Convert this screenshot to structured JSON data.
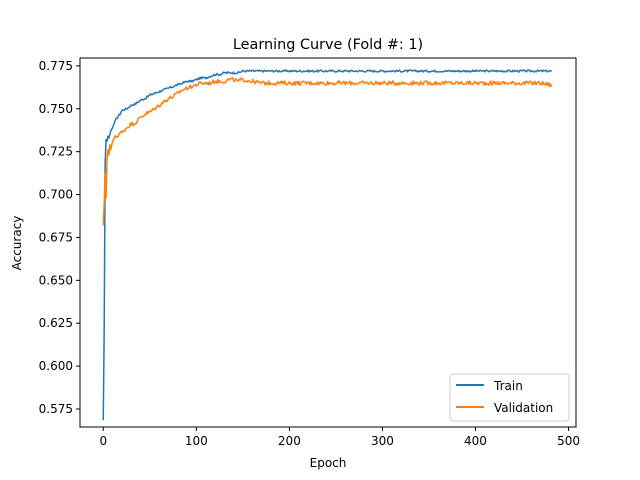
{
  "chart_data": {
    "type": "line",
    "title": "Learning Curve (Fold #: 1)",
    "xlabel": "Epoch",
    "ylabel": "Accuracy",
    "xlim": [
      -25,
      508
    ],
    "ylim": [
      0.5645,
      0.7796
    ],
    "x_ticks": [
      0,
      100,
      200,
      300,
      400,
      500
    ],
    "x_tick_labels": [
      "0",
      "100",
      "200",
      "300",
      "400",
      "500"
    ],
    "y_ticks": [
      0.575,
      0.6,
      0.625,
      0.65,
      0.675,
      0.7,
      0.725,
      0.75,
      0.775
    ],
    "y_tick_labels": [
      "0.575",
      "0.600",
      "0.625",
      "0.650",
      "0.675",
      "0.700",
      "0.725",
      "0.750",
      "0.775"
    ],
    "grid": false,
    "legend_position": "lower right",
    "series": [
      {
        "name": "Train",
        "color": "#1f77b4",
        "x": [
          0,
          1,
          2,
          3,
          4,
          5,
          6,
          8,
          10,
          12,
          15,
          18,
          20,
          25,
          30,
          35,
          40,
          45,
          50,
          55,
          60,
          65,
          70,
          75,
          80,
          85,
          90,
          95,
          100,
          105,
          110,
          115,
          120,
          125,
          130,
          135,
          140,
          145,
          150,
          160,
          170,
          180,
          190,
          200,
          210,
          220,
          230,
          240,
          250,
          260,
          270,
          280,
          290,
          300,
          310,
          320,
          330,
          340,
          350,
          360,
          370,
          380,
          390,
          400,
          410,
          420,
          430,
          440,
          450,
          460,
          470,
          480,
          482
        ],
        "y": [
          0.5685,
          0.622,
          0.718,
          0.732,
          0.731,
          0.734,
          0.733,
          0.737,
          0.739,
          0.742,
          0.745,
          0.747,
          0.749,
          0.75,
          0.752,
          0.753,
          0.755,
          0.756,
          0.758,
          0.759,
          0.76,
          0.761,
          0.762,
          0.763,
          0.764,
          0.765,
          0.766,
          0.766,
          0.767,
          0.768,
          0.768,
          0.769,
          0.77,
          0.77,
          0.771,
          0.771,
          0.771,
          0.771,
          0.772,
          0.772,
          0.772,
          0.772,
          0.772,
          0.772,
          0.772,
          0.772,
          0.772,
          0.772,
          0.772,
          0.772,
          0.772,
          0.772,
          0.772,
          0.772,
          0.772,
          0.772,
          0.772,
          0.772,
          0.772,
          0.772,
          0.772,
          0.772,
          0.772,
          0.772,
          0.772,
          0.772,
          0.772,
          0.772,
          0.772,
          0.772,
          0.772,
          0.772,
          0.772
        ]
      },
      {
        "name": "Validation",
        "color": "#ff7f0e",
        "x": [
          0,
          1,
          2,
          3,
          4,
          5,
          6,
          7,
          8,
          10,
          12,
          15,
          18,
          20,
          25,
          30,
          35,
          40,
          45,
          50,
          55,
          60,
          65,
          70,
          75,
          80,
          85,
          90,
          95,
          100,
          105,
          110,
          115,
          120,
          125,
          130,
          135,
          140,
          145,
          150,
          160,
          170,
          180,
          190,
          200,
          210,
          220,
          230,
          240,
          250,
          260,
          270,
          280,
          290,
          300,
          310,
          320,
          330,
          340,
          350,
          360,
          370,
          380,
          390,
          400,
          410,
          420,
          430,
          440,
          450,
          460,
          470,
          480,
          482
        ],
        "y": [
          0.682,
          0.695,
          0.712,
          0.698,
          0.72,
          0.726,
          0.723,
          0.729,
          0.726,
          0.731,
          0.733,
          0.734,
          0.736,
          0.736,
          0.739,
          0.741,
          0.742,
          0.745,
          0.747,
          0.748,
          0.75,
          0.752,
          0.754,
          0.756,
          0.757,
          0.759,
          0.761,
          0.762,
          0.763,
          0.764,
          0.765,
          0.765,
          0.765,
          0.766,
          0.766,
          0.766,
          0.767,
          0.767,
          0.766,
          0.767,
          0.766,
          0.765,
          0.765,
          0.765,
          0.765,
          0.765,
          0.765,
          0.765,
          0.765,
          0.765,
          0.765,
          0.765,
          0.765,
          0.765,
          0.765,
          0.765,
          0.765,
          0.765,
          0.765,
          0.765,
          0.765,
          0.765,
          0.765,
          0.765,
          0.765,
          0.765,
          0.765,
          0.765,
          0.765,
          0.765,
          0.765,
          0.765,
          0.764,
          0.764
        ]
      }
    ]
  }
}
